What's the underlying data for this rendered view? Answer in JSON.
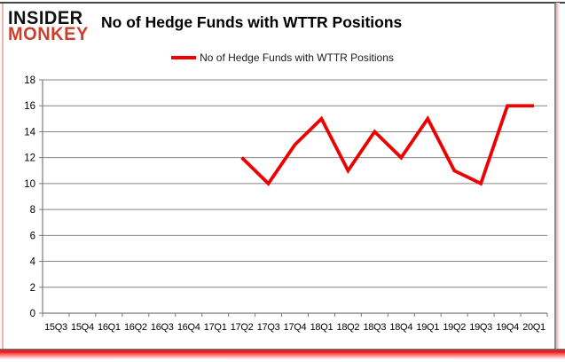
{
  "brand": {
    "line1": "INSIDER",
    "line2": "MONKEY",
    "line1_color": "#101010",
    "line2_color": "#c9402e"
  },
  "header": {
    "title": "No of Hedge Funds with WTTR Positions"
  },
  "legend": {
    "label": "No of Hedge Funds with WTTR Positions",
    "swatch_color": "#ee0000"
  },
  "chart_data": {
    "type": "line",
    "title": "No of Hedge Funds with WTTR Positions",
    "categories": [
      "15Q3",
      "15Q4",
      "16Q1",
      "16Q2",
      "16Q3",
      "16Q4",
      "17Q1",
      "17Q2",
      "17Q3",
      "17Q4",
      "18Q1",
      "18Q2",
      "18Q3",
      "18Q4",
      "19Q1",
      "19Q2",
      "19Q3",
      "19Q4",
      "20Q1"
    ],
    "series": [
      {
        "name": "No of Hedge Funds with WTTR Positions",
        "color": "#ee0000",
        "values": [
          null,
          null,
          null,
          null,
          null,
          null,
          null,
          12,
          10,
          13,
          15,
          11,
          14,
          12,
          15,
          11,
          10,
          16,
          16
        ]
      }
    ],
    "ylim": [
      0,
      18
    ],
    "ytick_step": 2,
    "ytick_labels": [
      "0",
      "2",
      "4",
      "6",
      "8",
      "10",
      "12",
      "14",
      "16",
      "18"
    ],
    "grid": true,
    "grid_color": "#848484",
    "axis_color": "#7a7a7a",
    "legend_position": "top-center"
  }
}
